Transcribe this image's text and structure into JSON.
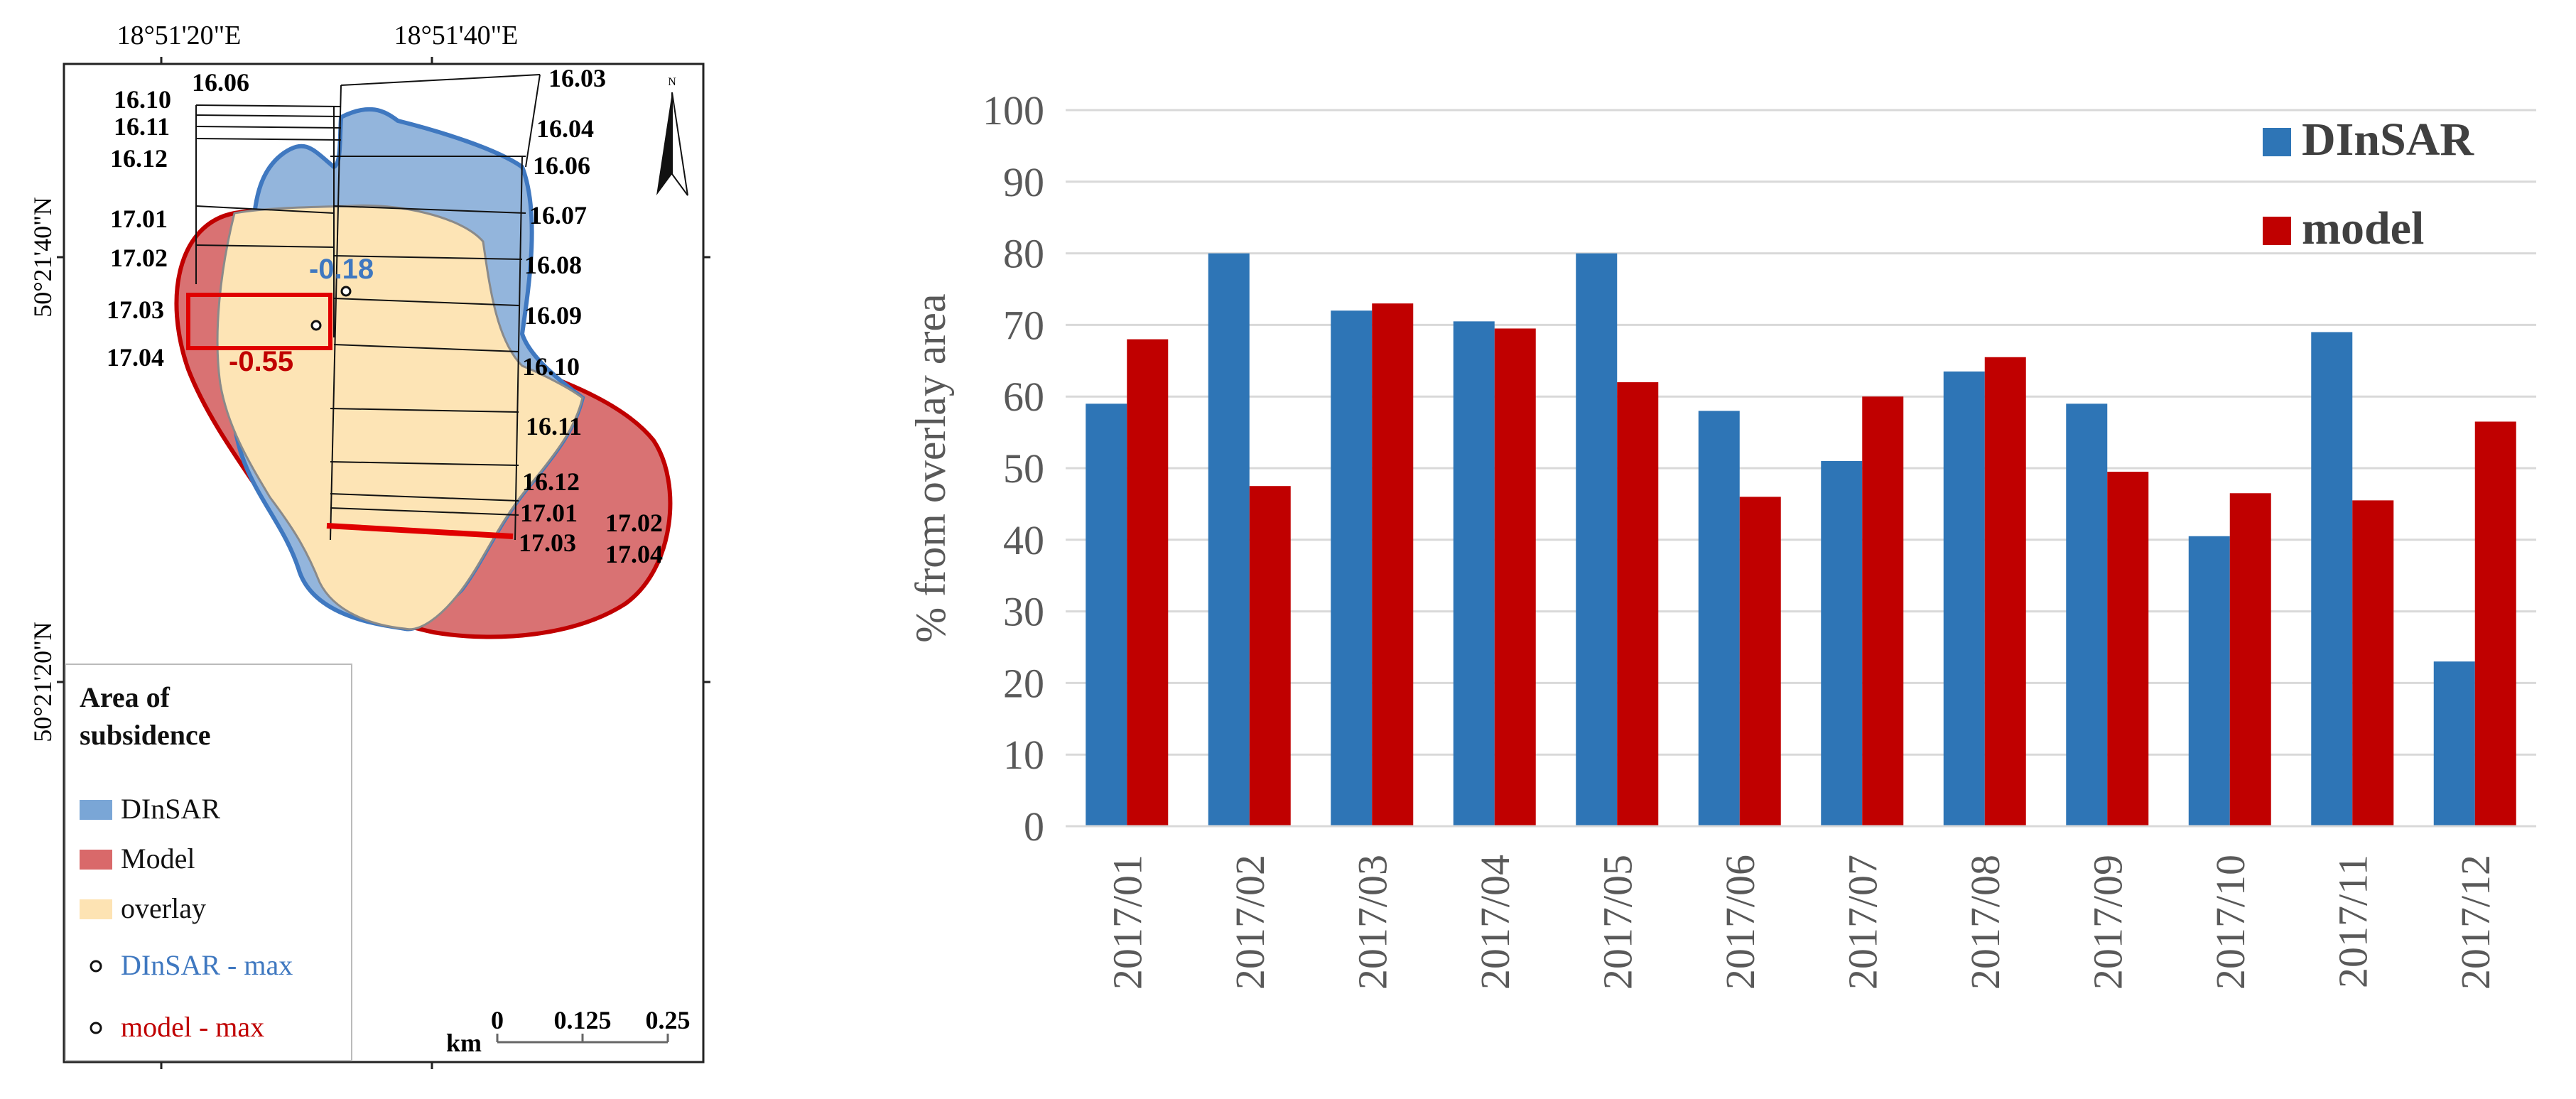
{
  "map": {
    "coords": {
      "top": [
        "18°51'20\"E",
        "18°51'40\"E"
      ],
      "left": [
        "50°21'40\"N",
        "50°21'20\"N"
      ]
    },
    "panel_labels_left": [
      "16.10",
      "16.06",
      "16.11",
      "16.12",
      "17.01",
      "17.02",
      "17.03",
      "17.04"
    ],
    "panel_labels_right": [
      "16.03",
      "16.04",
      "16.06",
      "16.07",
      "16.08",
      "16.09",
      "16.10",
      "16.11",
      "16.12",
      "17.01",
      "17.03",
      "17.02",
      "17.04"
    ],
    "max_dinsar_value": "-0.18",
    "max_model_value": "-0.55",
    "legend": {
      "title_line1": "Area of",
      "title_line2": "subsidence",
      "items": [
        {
          "label": "DInSAR",
          "color": "#7aa6d6"
        },
        {
          "label": "Model",
          "color": "#d9696a"
        },
        {
          "label": "overlay",
          "color": "#fde3b3"
        },
        {
          "label": "DInSAR - max",
          "color": "#3f78c0"
        },
        {
          "label": "model - max",
          "color": "#c00000"
        }
      ]
    },
    "scale": {
      "unit": "km",
      "labels": [
        "0",
        "0.125",
        "0.25"
      ]
    },
    "colors": {
      "dinsar_fill": "#93b5dc",
      "dinsar_stroke": "#3f78c0",
      "model_fill": "#d97273",
      "model_stroke": "#c00000",
      "overlay_fill": "#fde4b5"
    }
  },
  "chart_data": {
    "type": "bar",
    "categories": [
      "2017/01",
      "2017/02",
      "2017/03",
      "2017/04",
      "2017/05",
      "2017/06",
      "2017/07",
      "2017/08",
      "2017/09",
      "2017/10",
      "2017/11",
      "2017/12"
    ],
    "series": [
      {
        "name": "DInSAR",
        "color": "#2e75b6",
        "values": [
          59,
          80,
          72,
          70.5,
          80,
          58,
          51,
          63.5,
          59,
          40.5,
          69,
          23
        ]
      },
      {
        "name": "model",
        "color": "#c00000",
        "values": [
          68,
          47.5,
          73,
          69.5,
          62,
          46,
          60,
          65.5,
          49.5,
          46.5,
          45.5,
          56.5
        ]
      }
    ],
    "ylabel": "% from overlay area",
    "xlabel": "",
    "ylim": [
      0,
      100
    ],
    "yticks": [
      "0",
      "10",
      "20",
      "30",
      "40",
      "50",
      "60",
      "70",
      "80",
      "90",
      "100"
    ],
    "grid": true,
    "legend_position": "top-right"
  }
}
